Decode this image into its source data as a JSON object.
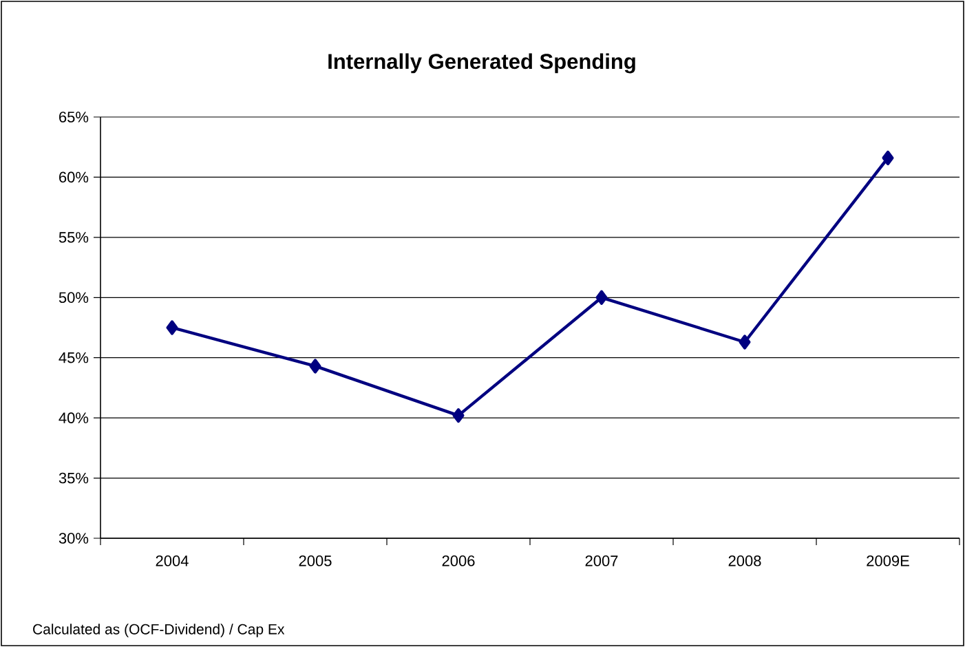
{
  "chart_data": {
    "type": "line",
    "title": "Internally Generated Spending",
    "annotations": [
      "Calculated as (OCF-Dividend) / Cap Ex"
    ],
    "categories": [
      "2004",
      "2005",
      "2006",
      "2007",
      "2008",
      "2009E"
    ],
    "series": [
      {
        "color": "#000080",
        "values": [
          47.5,
          44.3,
          40.2,
          50.0,
          46.3,
          61.6
        ]
      }
    ],
    "ylim": [
      30,
      65
    ],
    "yticks": [
      {
        "value": 30,
        "label": "30%"
      },
      {
        "value": 35,
        "label": "35%"
      },
      {
        "value": 40,
        "label": "40%"
      },
      {
        "value": 45,
        "label": "45%"
      },
      {
        "value": 50,
        "label": "50%"
      },
      {
        "value": 55,
        "label": "55%"
      },
      {
        "value": 60,
        "label": "60%"
      },
      {
        "value": 65,
        "label": "65%"
      }
    ],
    "grid": "y",
    "marker": "diamond",
    "line_style": "solid"
  }
}
